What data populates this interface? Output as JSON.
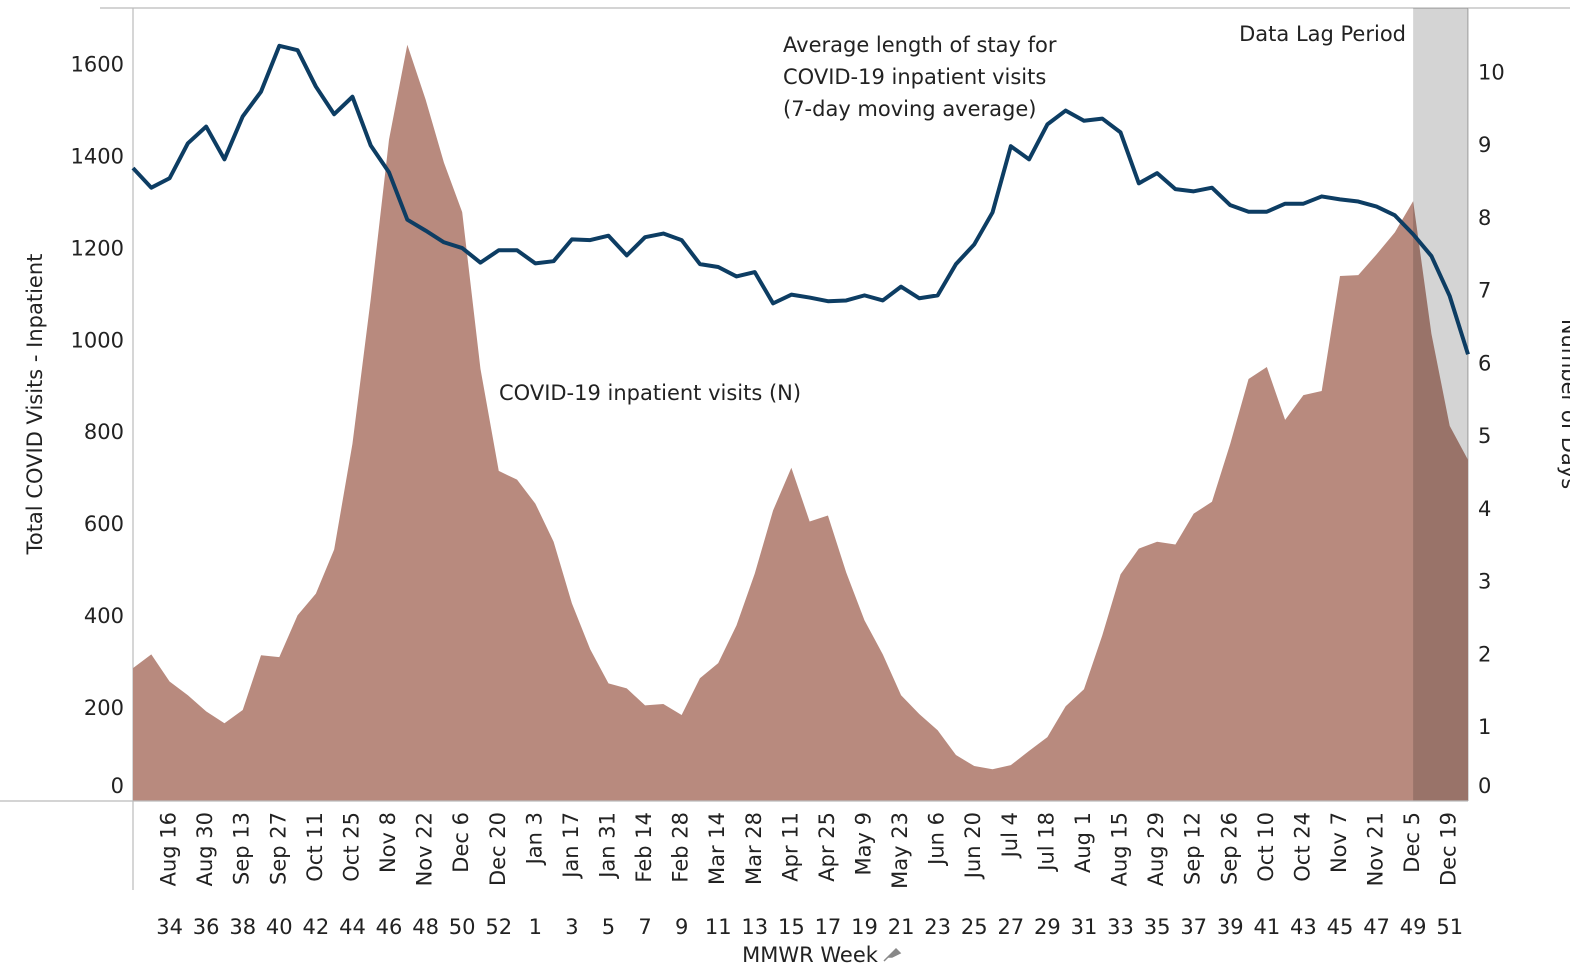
{
  "chart_data": {
    "type": "combo",
    "y_label": "Total COVID Visits - Inpatient",
    "y2_label": "Number of Days",
    "x_label": "MMWR Week",
    "categories": [
      null,
      null,
      "Aug 16",
      null,
      "Aug 30",
      null,
      "Sep 13",
      null,
      "Sep 27",
      null,
      "Oct 11",
      null,
      "Oct 25",
      null,
      "Nov 8",
      null,
      "Nov 22",
      null,
      "Dec 6",
      null,
      "Dec 20",
      null,
      "Jan 3",
      null,
      "Jan 17",
      null,
      "Jan 31",
      null,
      "Feb 14",
      null,
      "Feb 28",
      null,
      "Mar 14",
      null,
      "Mar 28",
      null,
      "Apr 11",
      null,
      "Apr 25",
      null,
      "May 9",
      null,
      "May 23",
      null,
      "Jun 6",
      null,
      "Jun 20",
      null,
      "Jul 4",
      null,
      "Jul 18",
      null,
      "Aug 1",
      null,
      "Aug 15",
      null,
      "Aug 29",
      null,
      "Sep 12",
      null,
      "Sep 26",
      null,
      "Oct 10",
      null,
      "Oct 24",
      null,
      "Nov 7",
      null,
      "Nov 21",
      null,
      "Dec 5",
      null,
      "Dec 19",
      null
    ],
    "weeks": [
      null,
      null,
      "34",
      null,
      "36",
      null,
      "38",
      null,
      "40",
      null,
      "42",
      null,
      "44",
      null,
      "46",
      null,
      "48",
      null,
      "50",
      null,
      "52",
      null,
      "1",
      null,
      "3",
      null,
      "5",
      null,
      "7",
      null,
      "9",
      null,
      "11",
      null,
      "13",
      null,
      "15",
      null,
      "17",
      null,
      "19",
      null,
      "21",
      null,
      "23",
      null,
      "25",
      null,
      "27",
      null,
      "29",
      null,
      "31",
      null,
      "33",
      null,
      "35",
      null,
      "37",
      null,
      "39",
      null,
      "41",
      null,
      "43",
      null,
      "45",
      null,
      "47",
      null,
      "49",
      null,
      "51",
      null
    ],
    "lag_period": {
      "label": "Data Lag Period",
      "start": "Dec 5",
      "color": "#d4d4d4"
    },
    "ylim": [
      0,
      1725
    ],
    "yticks": [
      0,
      200,
      400,
      600,
      800,
      1000,
      1200,
      1400,
      1600
    ],
    "y2lim": [
      0,
      10.9
    ],
    "y2ticks": [
      0,
      1,
      2,
      3,
      4,
      5,
      6,
      7,
      8,
      9,
      10
    ],
    "series": [
      {
        "type": "area",
        "label": [
          "COVID-19 inpatient visits (N)"
        ],
        "color": "#b88a7e",
        "values": [
          289,
          319,
          260,
          230,
          195,
          169,
          198,
          317,
          313,
          404,
          451,
          547,
          777,
          1092,
          1439,
          1645,
          1526,
          1389,
          1281,
          940,
          718,
          699,
          647,
          564,
          430,
          330,
          256,
          245,
          208,
          211,
          187,
          267,
          300,
          382,
          495,
          632,
          725,
          608,
          621,
          497,
          393,
          319,
          230,
          189,
          154,
          100,
          76,
          69,
          78,
          109,
          139,
          206,
          243,
          360,
          493,
          549,
          564,
          558,
          625,
          651,
          777,
          918,
          944,
          829,
          883,
          892,
          1142,
          1144,
          1189,
          1237,
          1305,
          1016,
          816,
          742
        ]
      },
      {
        "type": "line",
        "axis": "y2",
        "label": [
          "Average length of stay for",
          "COVID-19 inpatient visits",
          "(7-day moving average)"
        ],
        "color": "#0d3d63",
        "values": [
          8.7,
          8.43,
          8.56,
          9.04,
          9.27,
          8.82,
          9.41,
          9.75,
          10.38,
          10.32,
          9.82,
          9.44,
          9.68,
          9.01,
          8.64,
          7.99,
          7.84,
          7.68,
          7.6,
          7.4,
          7.57,
          7.57,
          7.39,
          7.42,
          7.72,
          7.71,
          7.77,
          7.5,
          7.75,
          7.8,
          7.71,
          7.38,
          7.34,
          7.21,
          7.27,
          6.84,
          6.96,
          6.92,
          6.87,
          6.88,
          6.95,
          6.88,
          7.07,
          6.91,
          6.95,
          7.38,
          7.65,
          8.09,
          9.0,
          8.82,
          9.3,
          9.49,
          9.35,
          9.38,
          9.19,
          8.49,
          8.63,
          8.41,
          8.38,
          8.43,
          8.19,
          8.1,
          8.1,
          8.21,
          8.21,
          8.31,
          8.27,
          8.24,
          8.17,
          8.05,
          7.79,
          7.49,
          6.94,
          6.14
        ]
      }
    ]
  }
}
